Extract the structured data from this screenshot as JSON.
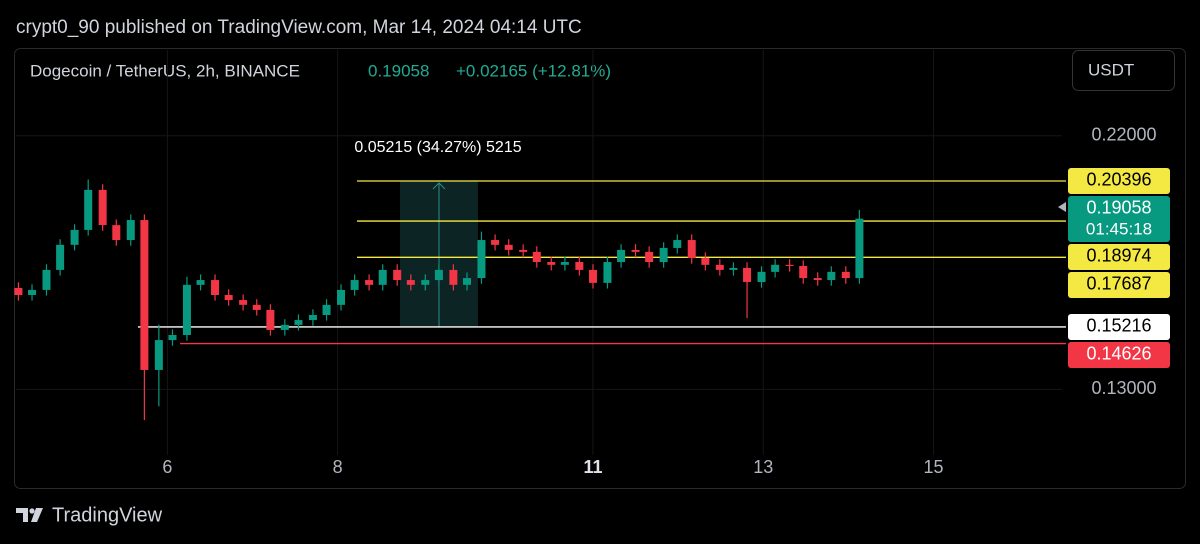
{
  "chart_data": {
    "type": "candlestick",
    "title": "crypt0_90 published on TradingView.com, Mar 14, 2024 04:14 UTC",
    "symbol": "Dogecoin / TetherUS, 2h, BINANCE",
    "last_price": 0.19058,
    "change": "+0.02165 (+12.81%)",
    "currency": "USDT",
    "countdown": "01:45:18",
    "measure_label": "0.05215 (34.27%) 5215",
    "brand": "TradingView",
    "up_color": "#089981",
    "down_color": "#f23645",
    "grid": true,
    "xlim": [
      4.21,
      16.51
    ],
    "xticks": [
      6,
      8,
      11,
      13,
      15
    ],
    "ylim": [
      0.095,
      0.2469
    ],
    "yticks": [
      {
        "value": 0.22,
        "label": "0.22000"
      },
      {
        "value": 0.13,
        "label": "0.13000"
      }
    ],
    "levels": [
      {
        "value": 0.20396,
        "color": "#f4e842"
      },
      {
        "value": 0.18974,
        "color": "#f4e842"
      },
      {
        "value": 0.17687,
        "color": "#f4e842"
      },
      {
        "value": 0.15216,
        "color": "#ffffff"
      },
      {
        "value": 0.14626,
        "color": "#f23645"
      }
    ],
    "x": [
      4.25,
      4.41,
      4.58,
      4.74,
      4.91,
      5.07,
      5.24,
      5.4,
      5.57,
      5.73,
      5.9,
      6.06,
      6.23,
      6.39,
      6.56,
      6.72,
      6.89,
      7.05,
      7.21,
      7.38,
      7.54,
      7.71,
      7.87,
      8.04,
      8.2,
      8.37,
      8.53,
      8.7,
      8.86,
      9.03,
      9.19,
      9.36,
      9.52,
      9.69,
      9.85,
      10.01,
      10.18,
      10.34,
      10.51,
      10.67,
      10.84,
      11.0,
      11.17,
      11.33,
      11.5,
      11.66,
      11.83,
      11.99,
      12.16,
      12.32,
      12.49,
      12.65,
      12.81,
      12.98,
      13.14,
      13.31,
      13.47,
      13.64,
      13.8,
      13.97,
      14.13
    ],
    "open": [
      0.166,
      0.1635,
      0.1653,
      0.1724,
      0.1813,
      0.1866,
      0.2008,
      0.1883,
      0.183,
      0.1901,
      0.1369,
      0.1475,
      0.1493,
      0.1671,
      0.1688,
      0.1635,
      0.1617,
      0.16,
      0.1582,
      0.1511,
      0.1529,
      0.1546,
      0.1564,
      0.16,
      0.1653,
      0.1688,
      0.1671,
      0.1724,
      0.1688,
      0.1671,
      0.1688,
      0.1724,
      0.1671,
      0.1695,
      0.183,
      0.1813,
      0.1795,
      0.1788,
      0.1752,
      0.1742,
      0.1752,
      0.1724,
      0.1678,
      0.1752,
      0.1795,
      0.1788,
      0.1752,
      0.1802,
      0.183,
      0.1766,
      0.1742,
      0.1724,
      0.1731,
      0.1681,
      0.1717,
      0.1742,
      0.1738,
      0.1695,
      0.1688,
      0.1717,
      0.1695
    ],
    "high": [
      0.168,
      0.1673,
      0.1744,
      0.1833,
      0.1886,
      0.2045,
      0.2028,
      0.1903,
      0.1921,
      0.1921,
      0.153,
      0.1513,
      0.17,
      0.1708,
      0.1708,
      0.1655,
      0.1637,
      0.162,
      0.1602,
      0.1549,
      0.1566,
      0.1584,
      0.162,
      0.1673,
      0.1708,
      0.1708,
      0.1744,
      0.1744,
      0.1708,
      0.1708,
      0.1744,
      0.1744,
      0.1715,
      0.186,
      0.185,
      0.1833,
      0.1815,
      0.1808,
      0.1772,
      0.1772,
      0.1772,
      0.1744,
      0.1772,
      0.1815,
      0.1815,
      0.1808,
      0.1822,
      0.185,
      0.185,
      0.1786,
      0.1762,
      0.1751,
      0.1751,
      0.1737,
      0.1762,
      0.1762,
      0.1758,
      0.1715,
      0.1737,
      0.1737,
      0.1937
    ],
    "low": [
      0.1615,
      0.1615,
      0.1633,
      0.1704,
      0.1793,
      0.1846,
      0.1863,
      0.181,
      0.181,
      0.1191,
      0.124,
      0.1455,
      0.1473,
      0.1651,
      0.1615,
      0.1597,
      0.158,
      0.1562,
      0.1491,
      0.1491,
      0.1509,
      0.1526,
      0.1544,
      0.158,
      0.1633,
      0.1651,
      0.1651,
      0.1668,
      0.1651,
      0.1651,
      0.1668,
      0.1651,
      0.1651,
      0.1675,
      0.1793,
      0.1775,
      0.1768,
      0.1732,
      0.1722,
      0.1722,
      0.1704,
      0.1658,
      0.1658,
      0.1732,
      0.1768,
      0.1732,
      0.1732,
      0.1782,
      0.1746,
      0.1722,
      0.1704,
      0.1704,
      0.1553,
      0.1661,
      0.1697,
      0.1718,
      0.1675,
      0.1668,
      0.1668,
      0.1675,
      0.1675
    ],
    "close": [
      0.1635,
      0.1653,
      0.1724,
      0.1813,
      0.1866,
      0.2008,
      0.1883,
      0.183,
      0.1901,
      0.1369,
      0.1475,
      0.1493,
      0.1671,
      0.1688,
      0.1635,
      0.1617,
      0.16,
      0.1582,
      0.1511,
      0.1529,
      0.1546,
      0.1564,
      0.16,
      0.1653,
      0.1688,
      0.1671,
      0.1724,
      0.1688,
      0.1671,
      0.1688,
      0.1724,
      0.1671,
      0.1695,
      0.183,
      0.1813,
      0.1795,
      0.1788,
      0.1752,
      0.1742,
      0.1752,
      0.1724,
      0.1678,
      0.1752,
      0.1795,
      0.1788,
      0.1752,
      0.1802,
      0.183,
      0.1766,
      0.1742,
      0.1724,
      0.1731,
      0.1681,
      0.1717,
      0.1742,
      0.1738,
      0.1695,
      0.1688,
      0.1717,
      0.1695,
      0.19058
    ]
  }
}
